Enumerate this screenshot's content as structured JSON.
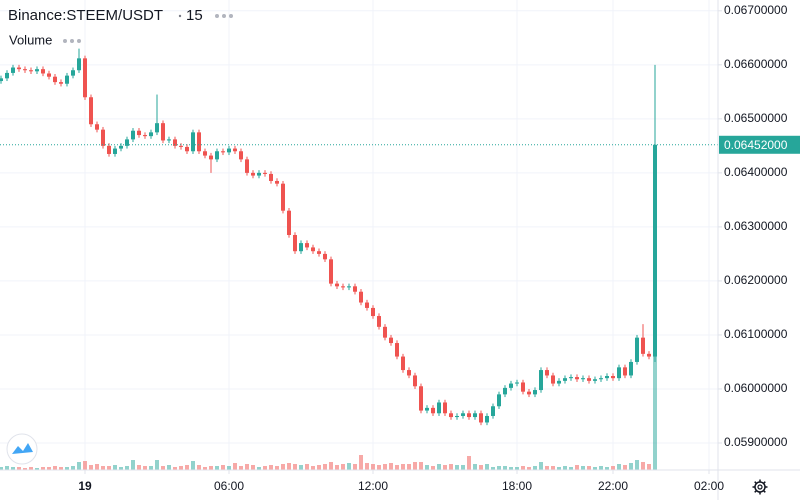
{
  "chart_data": {
    "type": "candlestick",
    "title": "Binance:STEEM/USDT",
    "interval": "15",
    "volume_label": "Volume",
    "up_color": "#26a69a",
    "down_color": "#ef5350",
    "grid": true,
    "xlim": [
      -3.5417,
      26.375
    ],
    "ylim": [
      0.0585,
      0.0672
    ],
    "xticks": [
      {
        "value": 0,
        "label": "19"
      },
      {
        "value": 6,
        "label": "06:00"
      },
      {
        "value": 12,
        "label": "12:00"
      },
      {
        "value": 18,
        "label": "18:00"
      },
      {
        "value": 22,
        "label": "22:00"
      },
      {
        "value": 26,
        "label": "02:00"
      }
    ],
    "yticks": [
      {
        "value": 0.059,
        "label": "0.05900000"
      },
      {
        "value": 0.06,
        "label": "0.06000000"
      },
      {
        "value": 0.061,
        "label": "0.06100000"
      },
      {
        "value": 0.062,
        "label": "0.06200000"
      },
      {
        "value": 0.063,
        "label": "0.06300000"
      },
      {
        "value": 0.064,
        "label": "0.06400000"
      },
      {
        "value": 0.065,
        "label": "0.06500000"
      },
      {
        "value": 0.066,
        "label": "0.06600000"
      },
      {
        "value": 0.067,
        "label": "0.06700000"
      }
    ],
    "last_price": {
      "value": 0.06452,
      "label": "0.06452000"
    },
    "x": [
      -3.5,
      -3.25,
      -3,
      -2.75,
      -2.5,
      -2.25,
      -2,
      -1.75,
      -1.5,
      -1.25,
      -1,
      -0.75,
      -0.5,
      -0.25,
      0,
      0.25,
      0.5,
      0.75,
      1,
      1.25,
      1.5,
      1.75,
      2,
      2.25,
      2.5,
      2.75,
      3,
      3.25,
      3.5,
      3.75,
      4,
      4.25,
      4.5,
      4.75,
      5,
      5.25,
      5.5,
      5.75,
      6,
      6.25,
      6.5,
      6.75,
      7,
      7.25,
      7.5,
      7.75,
      8,
      8.25,
      8.5,
      8.75,
      9,
      9.25,
      9.5,
      9.75,
      10,
      10.25,
      10.5,
      10.75,
      11,
      11.25,
      11.5,
      11.75,
      12,
      12.25,
      12.5,
      12.75,
      13,
      13.25,
      13.5,
      13.75,
      14,
      14.25,
      14.5,
      14.75,
      15,
      15.25,
      15.5,
      15.75,
      16,
      16.25,
      16.5,
      16.75,
      17,
      17.25,
      17.5,
      17.75,
      18,
      18.25,
      18.5,
      18.75,
      19,
      19.25,
      19.5,
      19.75,
      20,
      20.25,
      20.5,
      20.75,
      21,
      21.25,
      21.5,
      21.75,
      22,
      22.25,
      22.5,
      22.75,
      23,
      23.25,
      23.5,
      23.75
    ],
    "open": [
      0.0657,
      0.06575,
      0.06585,
      0.06595,
      0.06592,
      0.0659,
      0.06588,
      0.06592,
      0.06584,
      0.06578,
      0.06568,
      0.06565,
      0.0658,
      0.0659,
      0.06612,
      0.0654,
      0.0649,
      0.0648,
      0.0645,
      0.06435,
      0.06445,
      0.0645,
      0.06462,
      0.06478,
      0.0647,
      0.06468,
      0.06475,
      0.06492,
      0.0646,
      0.06462,
      0.0645,
      0.06448,
      0.0644,
      0.06475,
      0.0644,
      0.06432,
      0.06425,
      0.0644,
      0.06438,
      0.06445,
      0.0644,
      0.06425,
      0.064,
      0.06395,
      0.064,
      0.06398,
      0.06385,
      0.0638,
      0.0633,
      0.06285,
      0.06255,
      0.0627,
      0.06262,
      0.06255,
      0.0625,
      0.0624,
      0.06195,
      0.0619,
      0.06188,
      0.0619,
      0.0618,
      0.0616,
      0.0615,
      0.06135,
      0.06115,
      0.06095,
      0.06085,
      0.0606,
      0.06035,
      0.06025,
      0.06005,
      0.0596,
      0.05965,
      0.05955,
      0.05975,
      0.05955,
      0.05948,
      0.0595,
      0.05955,
      0.05948,
      0.05955,
      0.05938,
      0.0595,
      0.05968,
      0.0599,
      0.06002,
      0.0601,
      0.06012,
      0.05995,
      0.0599,
      0.05998,
      0.06035,
      0.06025,
      0.0601,
      0.06015,
      0.0602,
      0.06022,
      0.06018,
      0.0602,
      0.06015,
      0.06018,
      0.0602,
      0.06024,
      0.0602,
      0.0604,
      0.06025,
      0.0605,
      0.06095,
      0.06065,
      0.0606
    ],
    "high": [
      0.0658,
      0.0659,
      0.066,
      0.066,
      0.06597,
      0.06595,
      0.06597,
      0.06597,
      0.06589,
      0.06583,
      0.06573,
      0.06585,
      0.06595,
      0.0663,
      0.06617,
      0.06545,
      0.06495,
      0.06485,
      0.06455,
      0.0645,
      0.06455,
      0.06467,
      0.06483,
      0.06483,
      0.06475,
      0.0648,
      0.06545,
      0.06497,
      0.06467,
      0.06467,
      0.06455,
      0.06453,
      0.0648,
      0.0648,
      0.06445,
      0.06437,
      0.06445,
      0.06445,
      0.0645,
      0.0645,
      0.06445,
      0.0643,
      0.06405,
      0.06405,
      0.06405,
      0.06403,
      0.0639,
      0.06385,
      0.06335,
      0.0629,
      0.06275,
      0.06275,
      0.06267,
      0.0626,
      0.06255,
      0.06245,
      0.062,
      0.06195,
      0.06195,
      0.06195,
      0.06185,
      0.06165,
      0.06155,
      0.0614,
      0.0612,
      0.061,
      0.0609,
      0.06065,
      0.0604,
      0.0603,
      0.0601,
      0.0597,
      0.0597,
      0.0598,
      0.0598,
      0.0596,
      0.05955,
      0.0596,
      0.0596,
      0.0596,
      0.0596,
      0.05955,
      0.05973,
      0.05995,
      0.06007,
      0.06015,
      0.06017,
      0.06017,
      0.06,
      0.06003,
      0.0604,
      0.0604,
      0.0603,
      0.0602,
      0.06025,
      0.06027,
      0.06027,
      0.06025,
      0.06025,
      0.06023,
      0.06025,
      0.06029,
      0.06029,
      0.06045,
      0.06045,
      0.06055,
      0.061,
      0.0612,
      0.0607,
      0.066
    ],
    "low": [
      0.06565,
      0.0657,
      0.0658,
      0.06587,
      0.06585,
      0.06583,
      0.06583,
      0.06579,
      0.06573,
      0.06563,
      0.0656,
      0.0656,
      0.06575,
      0.06585,
      0.06535,
      0.06485,
      0.06475,
      0.06445,
      0.0643,
      0.0643,
      0.0644,
      0.06445,
      0.06457,
      0.06465,
      0.06463,
      0.06463,
      0.0647,
      0.06455,
      0.06455,
      0.06445,
      0.06443,
      0.06435,
      0.06435,
      0.06435,
      0.06427,
      0.064,
      0.0642,
      0.06433,
      0.06433,
      0.06435,
      0.0642,
      0.06395,
      0.0639,
      0.0639,
      0.06393,
      0.0638,
      0.06375,
      0.06325,
      0.0628,
      0.0625,
      0.0625,
      0.06257,
      0.0625,
      0.06245,
      0.06235,
      0.0619,
      0.06185,
      0.06183,
      0.06183,
      0.06175,
      0.06155,
      0.06145,
      0.0613,
      0.0611,
      0.0609,
      0.0608,
      0.06055,
      0.0603,
      0.0602,
      0.06,
      0.05955,
      0.05955,
      0.0595,
      0.0595,
      0.0595,
      0.05943,
      0.05943,
      0.05945,
      0.05943,
      0.05943,
      0.05933,
      0.05933,
      0.05945,
      0.05963,
      0.05985,
      0.05997,
      0.06005,
      0.0599,
      0.05985,
      0.05985,
      0.05993,
      0.0602,
      0.06005,
      0.06005,
      0.0601,
      0.06015,
      0.06013,
      0.06013,
      0.0601,
      0.0601,
      0.06013,
      0.06015,
      0.06015,
      0.06015,
      0.0602,
      0.0602,
      0.06045,
      0.0606,
      0.06055,
      0.0605
    ],
    "close": [
      0.06575,
      0.06585,
      0.06595,
      0.06592,
      0.0659,
      0.06588,
      0.06592,
      0.06584,
      0.06578,
      0.06568,
      0.06565,
      0.0658,
      0.0659,
      0.06612,
      0.0654,
      0.0649,
      0.0648,
      0.0645,
      0.06435,
      0.06445,
      0.0645,
      0.06462,
      0.06478,
      0.0647,
      0.06468,
      0.06475,
      0.06492,
      0.0646,
      0.06462,
      0.0645,
      0.06448,
      0.0644,
      0.06475,
      0.0644,
      0.06432,
      0.06425,
      0.0644,
      0.06438,
      0.06445,
      0.0644,
      0.06425,
      0.064,
      0.06395,
      0.064,
      0.06398,
      0.06385,
      0.0638,
      0.0633,
      0.06285,
      0.06255,
      0.0627,
      0.06262,
      0.06255,
      0.0625,
      0.0624,
      0.06195,
      0.0619,
      0.06188,
      0.0619,
      0.0618,
      0.0616,
      0.0615,
      0.06135,
      0.06115,
      0.06095,
      0.06085,
      0.0606,
      0.06035,
      0.06025,
      0.06005,
      0.0596,
      0.05965,
      0.05955,
      0.05975,
      0.05955,
      0.05948,
      0.0595,
      0.05955,
      0.05948,
      0.05955,
      0.05938,
      0.0595,
      0.05968,
      0.0599,
      0.06002,
      0.0601,
      0.06012,
      0.05995,
      0.0599,
      0.05998,
      0.06035,
      0.06025,
      0.0601,
      0.06015,
      0.0602,
      0.06022,
      0.06018,
      0.0602,
      0.06015,
      0.06018,
      0.0602,
      0.06024,
      0.0602,
      0.0604,
      0.06025,
      0.0605,
      0.06095,
      0.06065,
      0.0606,
      0.06452
    ],
    "volume": [
      3,
      4,
      3,
      3,
      2,
      3,
      2,
      3,
      3,
      4,
      3,
      3,
      4,
      8,
      9,
      5,
      6,
      4,
      4,
      5,
      3,
      4,
      10,
      5,
      4,
      4,
      10,
      4,
      5,
      3,
      4,
      5,
      9,
      5,
      3,
      4,
      4,
      5,
      4,
      7,
      4,
      6,
      5,
      3,
      4,
      5,
      4,
      6,
      7,
      6,
      5,
      6,
      4,
      5,
      6,
      8,
      5,
      6,
      7,
      6,
      15,
      7,
      6,
      5,
      6,
      7,
      5,
      6,
      6,
      8,
      8,
      5,
      4,
      6,
      5,
      6,
      5,
      5,
      14,
      6,
      5,
      6,
      3,
      4,
      4,
      3,
      3,
      4,
      3,
      4,
      8,
      4,
      4,
      3,
      4,
      3,
      5,
      4,
      4,
      3,
      4,
      3,
      4,
      6,
      5,
      7,
      10,
      8,
      6,
      117
    ]
  }
}
